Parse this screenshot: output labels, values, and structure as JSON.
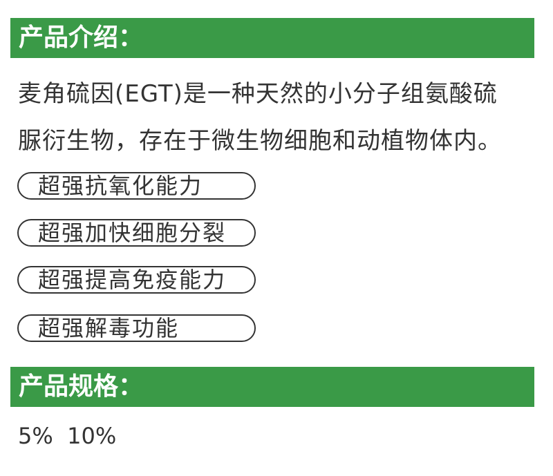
{
  "intro": {
    "heading": "产品介绍：",
    "lines": [
      "麦角硫因(EGT)是一种天然的小分子组氨酸硫",
      "脲衍生物，存在于微生物细胞和动植物体内。"
    ],
    "features": [
      "超强抗氧化能力",
      "超强加快细胞分裂",
      "超强提高免疫能力",
      "超强解毒功能"
    ]
  },
  "spec": {
    "heading": "产品规格：",
    "values": "5%  10%"
  },
  "colors": {
    "accent": "#3a9a47"
  }
}
